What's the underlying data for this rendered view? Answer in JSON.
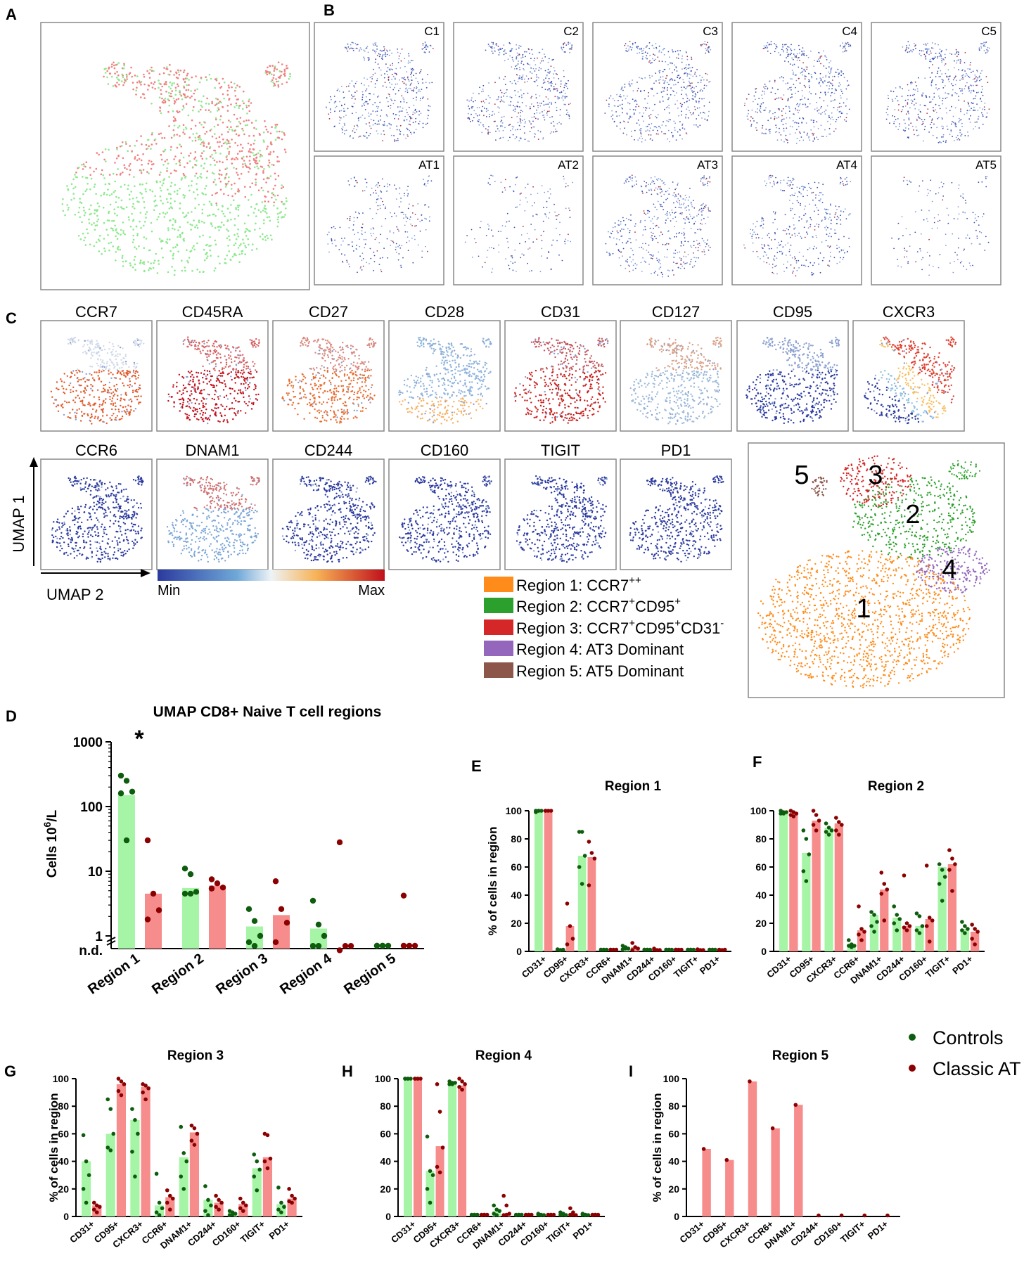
{
  "panel_labels": [
    "A",
    "B",
    "C",
    "D",
    "E",
    "F",
    "G",
    "H",
    "I"
  ],
  "panelB": {
    "top_labels": [
      "C1",
      "C2",
      "C3",
      "C4",
      "C5"
    ],
    "bottom_labels": [
      "AT1",
      "AT2",
      "AT3",
      "AT4",
      "AT5"
    ]
  },
  "panelC": {
    "row1_markers": [
      "CCR7",
      "CD45RA",
      "CD27",
      "CD28",
      "CD31",
      "CD127",
      "CD95",
      "CXCR3"
    ],
    "row2_markers": [
      "CCR6",
      "DNAM1",
      "CD244",
      "CD160",
      "TIGIT",
      "PD1"
    ],
    "axis_y": "UMAP 1",
    "axis_x": "UMAP 2",
    "scale_min": "Min",
    "scale_max": "Max",
    "colors": {
      "region1": "#ff8c1a",
      "region2": "#2ca02c",
      "region3": "#d62728",
      "region4": "#9467bd",
      "region5": "#8c564b"
    },
    "legend": [
      {
        "text": "Region 1: CCR7",
        "sup": "++"
      },
      {
        "text": "Region 2: CCR7",
        "sup": "+",
        "text2": "CD95",
        "sup2": "+"
      },
      {
        "text": "Region 3: CCR7",
        "sup": "+",
        "text2": "CD95",
        "sup2": "+",
        "text3": "CD31",
        "sup3": "-"
      },
      {
        "text": "Region 4: AT3 Dominant"
      },
      {
        "text": "Region 5: AT5 Dominant"
      }
    ],
    "region_numbers": [
      "1",
      "2",
      "3",
      "4",
      "5"
    ]
  },
  "legend_groups": {
    "controls": "Controls",
    "classic": "Classic AT",
    "controls_color": "#0e5c0e",
    "classic_color": "#8b0000"
  },
  "chart_data": [
    {
      "id": "D",
      "type": "bar",
      "title": "UMAP CD8+ Naive T cell regions",
      "ylabel": "Cells 10",
      "ylabel_sup": "6",
      "ylabel_tail": "/L",
      "yscale": "log",
      "yticks": [
        "1000",
        "100",
        "10",
        "1",
        "n.d."
      ],
      "significance": "*",
      "categories": [
        "Region 1",
        "Region 2",
        "Region 3",
        "Region 4",
        "Region 5"
      ],
      "series": [
        {
          "name": "Controls",
          "values": [
            150,
            5.5,
            1.4,
            1.3,
            0
          ],
          "points": [
            [
              300,
              250,
              170,
              160,
              30
            ],
            [
              11,
              9,
              4.8,
              4.5,
              4.5
            ],
            [
              2.6,
              1.7,
              1.0,
              0.8,
              0.7
            ],
            [
              3.5,
              1.5,
              1.0,
              0.7,
              0.7
            ],
            [
              0,
              0,
              0,
              0,
              0
            ]
          ]
        },
        {
          "name": "Classic AT",
          "values": [
            4.5,
            6,
            2.1,
            0.3,
            0
          ],
          "points": [
            [
              30,
              4.5,
              2.5,
              1.8
            ],
            [
              7.5,
              6.5,
              5.6,
              5.4
            ],
            [
              7,
              2.6,
              1.6,
              0.8
            ],
            [
              28,
              0.7,
              0.7,
              0.6
            ],
            [
              4.2,
              0,
              0,
              0
            ]
          ]
        }
      ]
    },
    {
      "id": "E",
      "type": "bar",
      "title": "Region 1",
      "ylabel": "% of cells in region",
      "ylim": [
        0,
        100
      ],
      "yticks": [
        "0",
        "20",
        "40",
        "60",
        "80",
        "100"
      ],
      "categories": [
        "CD31+",
        "CD95+",
        "CXCR3+",
        "CCR6+",
        "DNAM1+",
        "CD244+",
        "CD160+",
        "TIGIT+",
        "PD1+"
      ],
      "series": [
        {
          "name": "Controls",
          "values": [
            100,
            1,
            68,
            0.5,
            2.5,
            0.5,
            0.5,
            0.5,
            0.5
          ],
          "points": [
            [
              100,
              100,
              100,
              99,
              100
            ],
            [
              1.5,
              1,
              0.5,
              0.5,
              1
            ],
            [
              85,
              85,
              68,
              60,
              48
            ],
            [
              0.5,
              0.5,
              0.5,
              0.5,
              0.5
            ],
            [
              4,
              3,
              2,
              1.5,
              2
            ],
            [
              0.5,
              0.5,
              0.5,
              0.5,
              0.5
            ],
            [
              0.5,
              0.5,
              0.5,
              0.5,
              0.5
            ],
            [
              0.5,
              0.5,
              0.5,
              0.5,
              0.5
            ],
            [
              0.5,
              0.5,
              0.5,
              0.5,
              0.5
            ]
          ]
        },
        {
          "name": "Classic AT",
          "values": [
            100,
            18,
            67,
            0.5,
            3,
            1.5,
            0.5,
            1,
            1
          ],
          "points": [
            [
              100,
              100,
              100,
              100
            ],
            [
              34,
              18,
              9,
              5
            ],
            [
              78,
              70,
              66,
              47
            ],
            [
              0.5,
              0.5,
              0.5,
              0.5
            ],
            [
              6,
              3,
              2,
              1
            ],
            [
              2,
              1,
              1,
              0.5
            ],
            [
              0.5,
              0.5,
              0.5,
              0.5
            ],
            [
              1.5,
              1,
              1,
              0.5
            ],
            [
              1,
              1,
              0.5,
              0.5
            ]
          ]
        }
      ]
    },
    {
      "id": "F",
      "type": "bar",
      "title": "Region 2",
      "ylabel": "",
      "ylim": [
        0,
        100
      ],
      "yticks": [
        "0",
        "20",
        "40",
        "60",
        "80",
        "100"
      ],
      "categories": [
        "CD31+",
        "CD95+",
        "CXCR3+",
        "CCR6+",
        "DNAM1+",
        "CD244+",
        "CD160+",
        "TIGIT+",
        "PD1+"
      ],
      "series": [
        {
          "name": "Controls",
          "values": [
            99,
            70,
            88,
            5,
            26,
            24,
            18,
            60,
            16
          ],
          "points": [
            [
              100,
              99,
              99,
              98,
              98
            ],
            [
              86,
              80,
              69,
              57,
              50
            ],
            [
              91,
              88,
              86,
              85,
              83
            ],
            [
              8,
              5,
              4,
              4,
              3
            ],
            [
              28,
              26,
              21,
              18,
              14
            ],
            [
              32,
              26,
              23,
              20,
              15
            ],
            [
              27,
              25,
              18,
              15,
              13
            ],
            [
              62,
              58,
              53,
              48,
              36
            ],
            [
              21,
              18,
              16,
              15,
              13
            ]
          ]
        },
        {
          "name": "Classic AT",
          "values": [
            98,
            93,
            91,
            15,
            44,
            18,
            23,
            62,
            14
          ],
          "points": [
            [
              100,
              99,
              98,
              97,
              96
            ],
            [
              100,
              97,
              93,
              90,
              86
            ],
            [
              95,
              92,
              90,
              86,
              83
            ],
            [
              32,
              16,
              14,
              12,
              8
            ],
            [
              56,
              48,
              44,
              41,
              22
            ],
            [
              54,
              20,
              18,
              17,
              15
            ],
            [
              61,
              24,
              22,
              18,
              7
            ],
            [
              72,
              66,
              62,
              58,
              43
            ],
            [
              19,
              16,
              14,
              9,
              5
            ]
          ]
        }
      ]
    },
    {
      "id": "G",
      "type": "bar",
      "title": "Region 3",
      "ylabel": "% of cells in region",
      "ylim": [
        0,
        100
      ],
      "yticks": [
        "0",
        "20",
        "40",
        "60",
        "80",
        "100"
      ],
      "categories": [
        "CD31+",
        "CD95+",
        "CXCR3+",
        "CCR6+",
        "DNAM1+",
        "CD244+",
        "CD160+",
        "TIGIT+",
        "PD1+"
      ],
      "series": [
        {
          "name": "Controls",
          "values": [
            40,
            60,
            70,
            8,
            43,
            12,
            3,
            35,
            9
          ],
          "points": [
            [
              59,
              40,
              30,
              20,
              10
            ],
            [
              85,
              78,
              60,
              50,
              48
            ],
            [
              78,
              70,
              60,
              47,
              29
            ],
            [
              31,
              10,
              6,
              3,
              1
            ],
            [
              65,
              46,
              40,
              29,
              20
            ],
            [
              22,
              12,
              8,
              4,
              1
            ],
            [
              4,
              3,
              2,
              1,
              0.5
            ],
            [
              45,
              40,
              34,
              29,
              19
            ],
            [
              21,
              10,
              7,
              5,
              3
            ]
          ]
        },
        {
          "name": "Classic AT",
          "values": [
            8,
            96,
            94,
            14,
            61,
            10,
            9,
            43,
            13
          ],
          "points": [
            [
              10,
              8,
              7,
              5,
              3
            ],
            [
              100,
              98,
              96,
              91,
              88
            ],
            [
              96,
              95,
              93,
              90,
              85
            ],
            [
              19,
              15,
              13,
              10,
              5
            ],
            [
              66,
              64,
              60,
              55,
              52
            ],
            [
              15,
              12,
              10,
              7,
              5
            ],
            [
              13,
              10,
              8,
              6,
              4
            ],
            [
              60,
              59,
              42,
              40,
              35
            ],
            [
              20,
              15,
              13,
              11,
              10
            ]
          ]
        }
      ]
    },
    {
      "id": "H",
      "type": "bar",
      "title": "Region 4",
      "ylabel": "",
      "ylim": [
        0,
        100
      ],
      "yticks": [
        "0",
        "20",
        "40",
        "60",
        "80",
        "100"
      ],
      "categories": [
        "CD31+",
        "CD95+",
        "CXCR3+",
        "CCR6+",
        "DNAM1+",
        "CD244+",
        "CD160+",
        "TIGIT+",
        "PD1+"
      ],
      "series": [
        {
          "name": "Controls",
          "values": [
            100,
            33,
            97,
            0.5,
            4,
            0.5,
            1,
            1,
            1
          ],
          "points": [
            [
              100,
              100,
              100,
              100,
              100
            ],
            [
              58,
              33,
              30,
              20,
              10
            ],
            [
              98,
              97,
              97,
              96,
              96
            ],
            [
              1,
              0.5,
              0.5,
              0.5,
              0.5
            ],
            [
              8,
              5,
              4,
              2,
              1
            ],
            [
              1,
              0.5,
              0.5,
              0.5,
              0.5
            ],
            [
              2,
              1,
              1,
              0.5,
              0.5
            ],
            [
              3,
              2,
              1,
              0.5,
              0.5
            ],
            [
              2,
              1,
              1,
              0.5,
              0.5
            ]
          ]
        },
        {
          "name": "Classic AT",
          "values": [
            100,
            51,
            95,
            0.5,
            1,
            0.5,
            0.5,
            1,
            0.5
          ],
          "points": [
            [
              100,
              100,
              100,
              100,
              100
            ],
            [
              96,
              76,
              50,
              36,
              32
            ],
            [
              100,
              98,
              96,
              94,
              92
            ],
            [
              1,
              0.5,
              0.5,
              0.5,
              0.5
            ],
            [
              15,
              8,
              2,
              1,
              0.5
            ],
            [
              1,
              0.5,
              0.5,
              0.5,
              0.5
            ],
            [
              1,
              0.5,
              0.5,
              0.5,
              0.5
            ],
            [
              6,
              3,
              1,
              0.5,
              0.5
            ],
            [
              1,
              0.5,
              0.5,
              0.5,
              0.5
            ]
          ]
        }
      ]
    },
    {
      "id": "I",
      "type": "bar",
      "title": "Region 5",
      "ylabel": "% of cells in region",
      "ylim": [
        0,
        100
      ],
      "yticks": [
        "0",
        "20",
        "40",
        "60",
        "80",
        "100"
      ],
      "categories": [
        "CD31+",
        "CD95+",
        "CXCR3+",
        "CCR6+",
        "DNAM1+",
        "CD244+",
        "CD160+",
        "TIGIT+",
        "PD1+"
      ],
      "series": [
        {
          "name": "Controls",
          "values": [
            0,
            0,
            0,
            0,
            0,
            0,
            0,
            0,
            0
          ],
          "points": []
        },
        {
          "name": "Classic AT",
          "values": [
            49,
            41,
            98,
            64,
            81,
            0,
            0,
            0,
            0
          ],
          "points": [
            [
              49
            ],
            [
              41
            ],
            [
              98
            ],
            [
              64
            ],
            [
              81
            ],
            [
              0
            ],
            [
              0
            ],
            [
              0
            ],
            [
              0
            ]
          ]
        }
      ]
    }
  ]
}
